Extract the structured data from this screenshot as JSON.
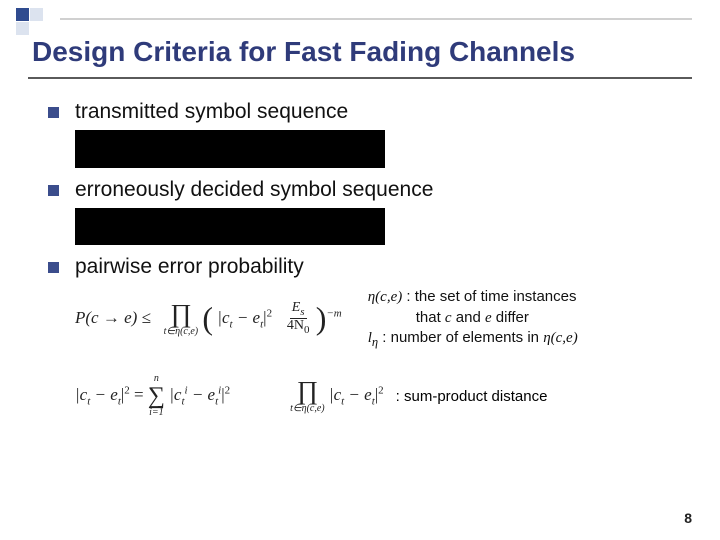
{
  "title": "Design Criteria for Fast Fading Channels",
  "bullets": {
    "b1": "transmitted symbol sequence",
    "b2": "erroneously decided symbol sequence",
    "b3": "pairwise error probability"
  },
  "formulas": {
    "pep_lhs": "P(c → e) ≤",
    "pep_prod_lower": "t∈η(c,e)",
    "pep_abs_inner": "|c",
    "pep_t": "t",
    "pep_minus": " − e",
    "pep_abs_close_sq": "|",
    "pep_exp2": "2",
    "frac_num": "E",
    "frac_num_sub": "s",
    "frac_den": "4N",
    "frac_den_sub": "0",
    "pep_outer_exp": "−m",
    "diff_lhs1": "|c",
    "diff_lhs2": " − e",
    "diff_eq": " = ",
    "sum_upper": "n",
    "sum_lower": "i=1",
    "diff_rhs1": "|c",
    "diff_rhs2": " − e",
    "diff_sup": "i",
    "prod2_lower": "t∈η(c,e)"
  },
  "defs": {
    "eta_lhs": "η(c,e)",
    "eta_rhs_line1": " : the set of time instances",
    "eta_rhs_line2": "that c and e differ",
    "leta_lhs": "l",
    "leta_sub": "η",
    "leta_rhs": "  : number of elements in ",
    "leta_rhs2": "η(c,e)",
    "sp": " : sum-product distance"
  },
  "page": "8",
  "colors": {
    "title": "#2f3b7a",
    "accent": "#3b4d8c",
    "text": "#111111"
  },
  "blackbox": {
    "w1": 310,
    "h1": 38,
    "w2": 310,
    "h2": 37
  }
}
